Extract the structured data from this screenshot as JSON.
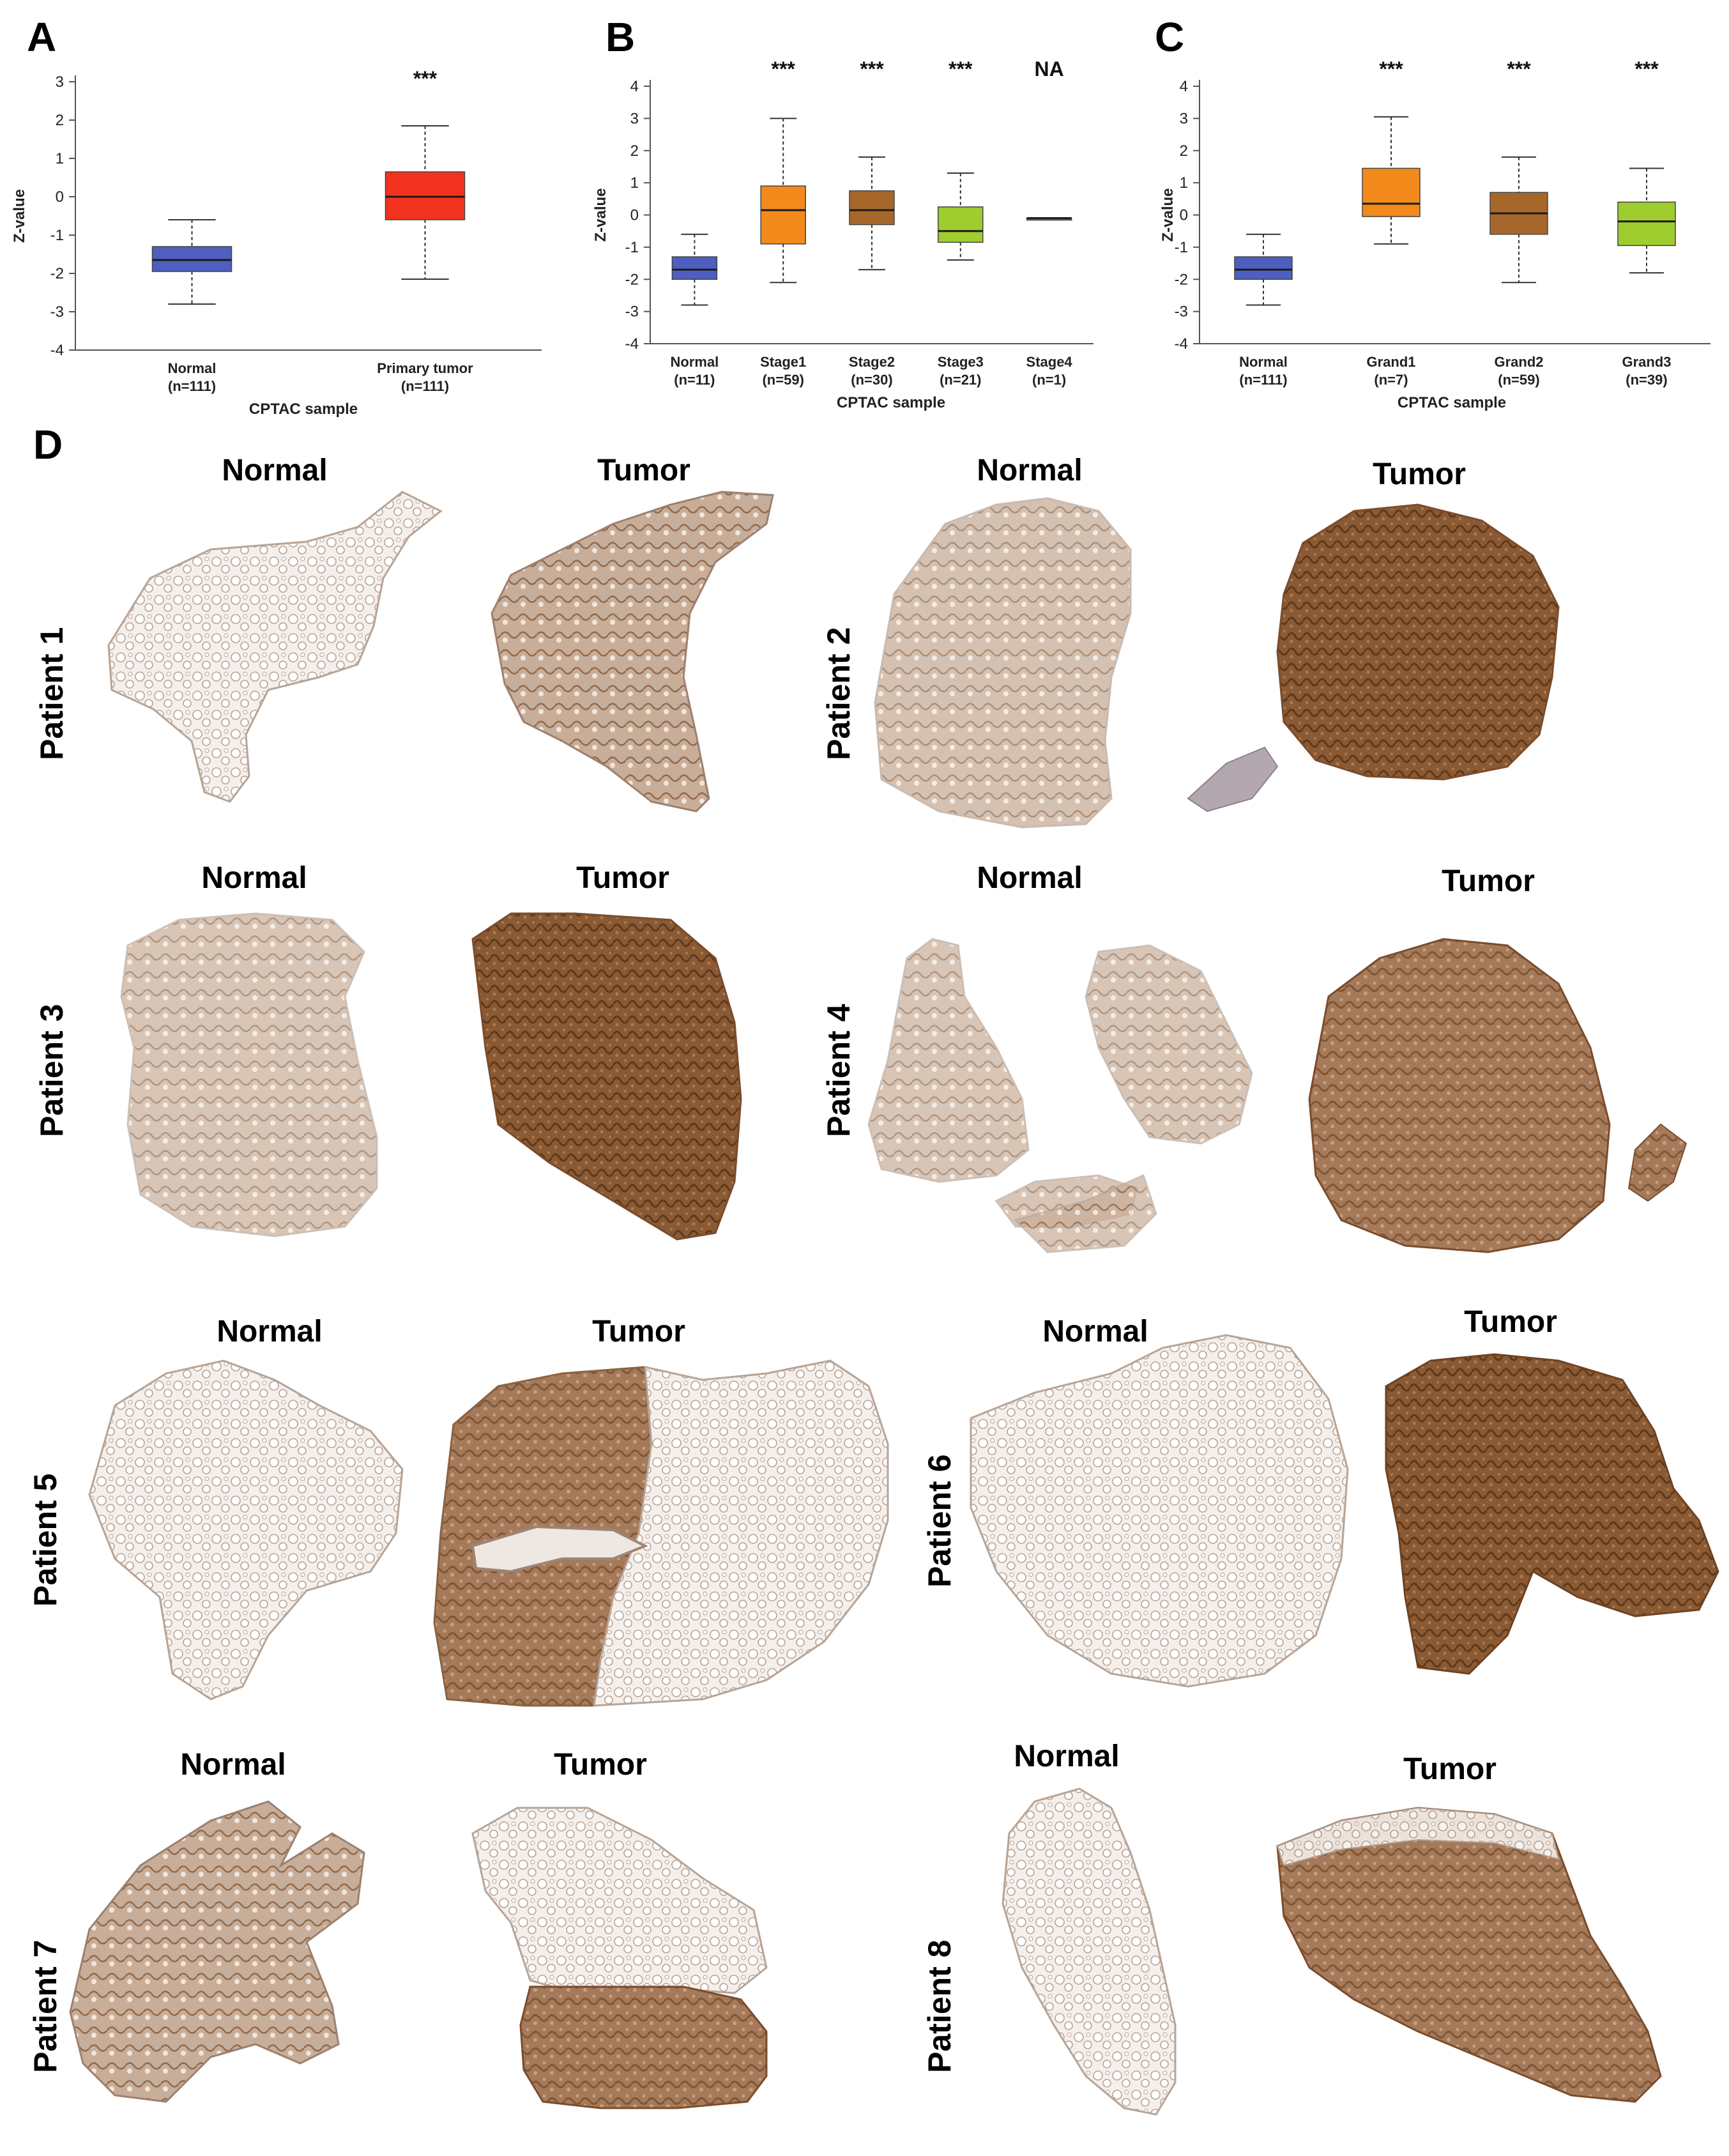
{
  "panels": {
    "a": "A",
    "b": "B",
    "c": "C",
    "d": "D"
  },
  "chart_data": [
    {
      "type": "box",
      "panel": "A",
      "ylabel": "Z-value",
      "xlabel": "CPTAC sample",
      "ylim": [
        -4,
        3
      ],
      "yticks": [
        3,
        2,
        1,
        0,
        -1,
        -2,
        -3,
        -4
      ],
      "categories": [
        "Normal",
        "Primary tumor"
      ],
      "counts": [
        "(n=111)",
        "(n=111)"
      ],
      "boxes": [
        {
          "whisker_low": -2.8,
          "q1": -1.95,
          "median": -1.65,
          "q3": -1.3,
          "whisker_high": -0.6,
          "color": "#4f5fbf",
          "sig": ""
        },
        {
          "whisker_low": -2.15,
          "q1": -0.6,
          "median": 0.0,
          "q3": 0.65,
          "whisker_high": 1.85,
          "color": "#f0321e",
          "sig": "***"
        }
      ]
    },
    {
      "type": "box",
      "panel": "B",
      "ylabel": "Z-value",
      "xlabel": "CPTAC sample",
      "ylim": [
        -4,
        4
      ],
      "yticks": [
        4,
        3,
        2,
        1,
        0,
        -1,
        -2,
        -3,
        -4
      ],
      "categories": [
        "Normal",
        "Stage1",
        "Stage2",
        "Stage3",
        "Stage4"
      ],
      "counts": [
        "(n=11)",
        "(n=59)",
        "(n=30)",
        "(n=21)",
        "(n=1)"
      ],
      "boxes": [
        {
          "whisker_low": -2.8,
          "q1": -2.0,
          "median": -1.7,
          "q3": -1.3,
          "whisker_high": -0.6,
          "color": "#4f5fbf",
          "sig": ""
        },
        {
          "whisker_low": -2.1,
          "q1": -0.9,
          "median": 0.15,
          "q3": 0.9,
          "whisker_high": 3.0,
          "color": "#f28a1c",
          "sig": "***"
        },
        {
          "whisker_low": -1.7,
          "q1": -0.3,
          "median": 0.15,
          "q3": 0.75,
          "whisker_high": 1.8,
          "color": "#a8672a",
          "sig": "***"
        },
        {
          "whisker_low": -1.4,
          "q1": -0.85,
          "median": -0.5,
          "q3": 0.25,
          "whisker_high": 1.3,
          "color": "#9fcc2e",
          "sig": "***"
        },
        {
          "whisker_low": -0.1,
          "q1": -0.1,
          "median": -0.1,
          "q3": -0.1,
          "whisker_high": -0.1,
          "color": "#a86a3c",
          "sig": "NA"
        }
      ]
    },
    {
      "type": "box",
      "panel": "C",
      "ylabel": "Z-value",
      "xlabel": "CPTAC sample",
      "ylim": [
        -4,
        4
      ],
      "yticks": [
        4,
        3,
        2,
        1,
        0,
        -1,
        -2,
        -3,
        -4
      ],
      "categories": [
        "Normal",
        "Grand1",
        "Grand2",
        "Grand3"
      ],
      "counts": [
        "(n=111)",
        "(n=7)",
        "(n=59)",
        "(n=39)"
      ],
      "boxes": [
        {
          "whisker_low": -2.8,
          "q1": -2.0,
          "median": -1.7,
          "q3": -1.3,
          "whisker_high": -0.6,
          "color": "#4f5fbf",
          "sig": ""
        },
        {
          "whisker_low": -0.9,
          "q1": -0.05,
          "median": 0.35,
          "q3": 1.45,
          "whisker_high": 3.05,
          "color": "#f28a1c",
          "sig": "***"
        },
        {
          "whisker_low": -2.1,
          "q1": -0.6,
          "median": 0.05,
          "q3": 0.7,
          "whisker_high": 1.8,
          "color": "#a8672a",
          "sig": "***"
        },
        {
          "whisker_low": -1.8,
          "q1": -0.95,
          "median": -0.2,
          "q3": 0.4,
          "whisker_high": 1.45,
          "color": "#9fcc2e",
          "sig": "***"
        }
      ]
    }
  ],
  "ihc": {
    "normal_label": "Normal",
    "tumor_label": "Tumor",
    "patients": [
      {
        "label": "Patient 1",
        "normal_stain": "light",
        "tumor_stain": "medium"
      },
      {
        "label": "Patient 2",
        "normal_stain": "light",
        "tumor_stain": "dark"
      },
      {
        "label": "Patient 3",
        "normal_stain": "light",
        "tumor_stain": "dark"
      },
      {
        "label": "Patient 4",
        "normal_stain": "light",
        "tumor_stain": "dark"
      },
      {
        "label": "Patient 5",
        "normal_stain": "light",
        "tumor_stain": "dark"
      },
      {
        "label": "Patient 6",
        "normal_stain": "light",
        "tumor_stain": "dark"
      },
      {
        "label": "Patient 7",
        "normal_stain": "medium",
        "tumor_stain": "dark"
      },
      {
        "label": "Patient 8",
        "normal_stain": "light",
        "tumor_stain": "medium"
      }
    ]
  },
  "colors": {
    "normal_tissue": "#ebe3dd",
    "tumor_tissue": "#a57a5a",
    "tumor_tissue_dark": "#8a5a34"
  }
}
